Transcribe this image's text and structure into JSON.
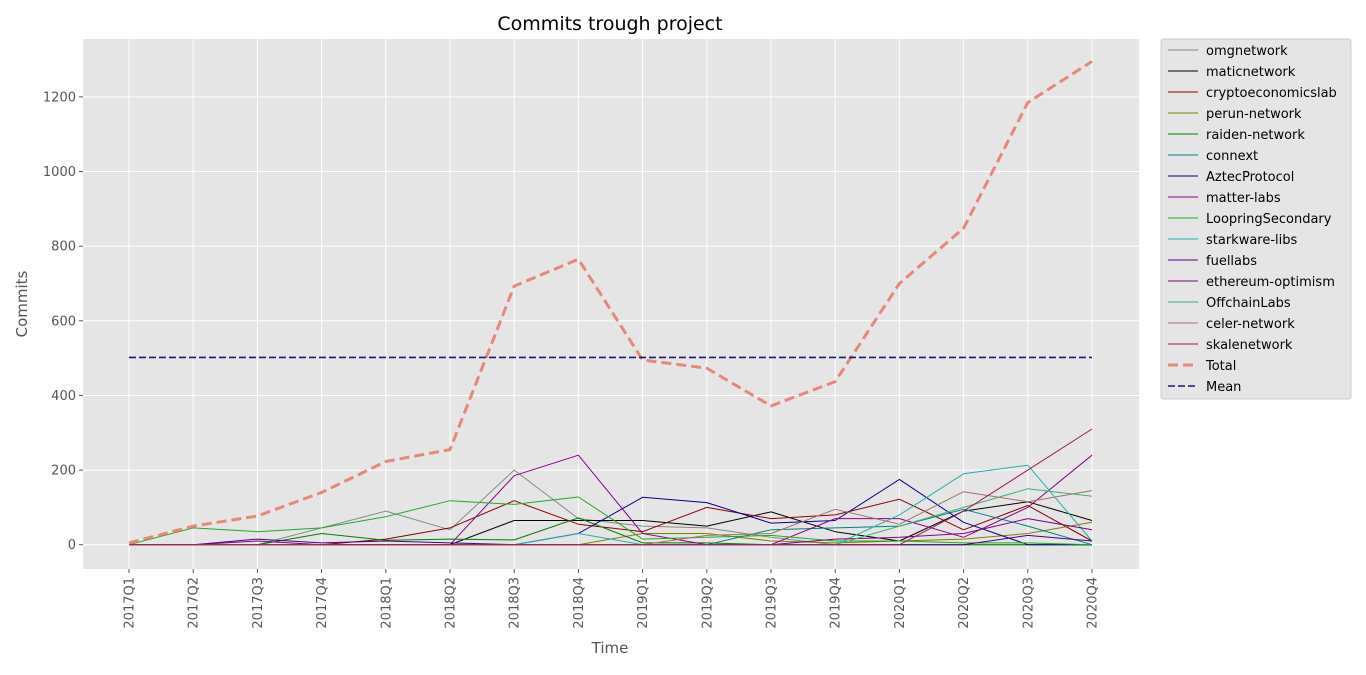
{
  "chart_data": {
    "type": "line",
    "title": "Commits trough project",
    "xlabel": "Time",
    "ylabel": "Commits",
    "ylim": [
      -65,
      1355
    ],
    "yticks": [
      0,
      200,
      400,
      600,
      800,
      1000,
      1200
    ],
    "grid": true,
    "legend_position": "outside-right",
    "categories": [
      "2017Q1",
      "2017Q2",
      "2017Q3",
      "2017Q4",
      "2018Q1",
      "2018Q2",
      "2018Q3",
      "2018Q4",
      "2019Q1",
      "2019Q2",
      "2019Q3",
      "2019Q4",
      "2020Q1",
      "2020Q2",
      "2020Q3",
      "2020Q4"
    ],
    "series": [
      {
        "name": "omgnetwork",
        "color": "#888888",
        "width": 1,
        "dash": "",
        "values": [
          0,
          0,
          0,
          45,
          90,
          40,
          200,
          70,
          50,
          45,
          20,
          0,
          0,
          0,
          0,
          0
        ]
      },
      {
        "name": "maticnetwork",
        "color": "#000000",
        "width": 1,
        "dash": "",
        "values": [
          0,
          0,
          0,
          0,
          0,
          0,
          65,
          65,
          65,
          50,
          88,
          35,
          10,
          90,
          115,
          65
        ]
      },
      {
        "name": "cryptoeconomicslab",
        "color": "#8b0000",
        "width": 1,
        "dash": "",
        "values": [
          0,
          0,
          0,
          0,
          15,
          45,
          118,
          55,
          35,
          100,
          70,
          80,
          122,
          40,
          105,
          10
        ]
      },
      {
        "name": "perun-network",
        "color": "#808000",
        "width": 1,
        "dash": "",
        "values": [
          0,
          0,
          0,
          0,
          0,
          0,
          0,
          0,
          30,
          30,
          10,
          5,
          10,
          15,
          30,
          60
        ]
      },
      {
        "name": "raiden-network",
        "color": "#008000",
        "width": 1,
        "dash": "",
        "values": [
          0,
          0,
          0,
          30,
          12,
          15,
          13,
          72,
          5,
          5,
          0,
          0,
          0,
          0,
          0,
          0
        ]
      },
      {
        "name": "connext",
        "color": "#008080",
        "width": 1,
        "dash": "",
        "values": [
          0,
          0,
          0,
          0,
          0,
          0,
          0,
          0,
          0,
          0,
          40,
          45,
          50,
          95,
          50,
          0
        ]
      },
      {
        "name": "AztecProtocol",
        "color": "#00008b",
        "width": 1,
        "dash": "",
        "values": [
          0,
          0,
          0,
          0,
          0,
          0,
          0,
          30,
          127,
          113,
          58,
          65,
          175,
          60,
          0,
          0
        ]
      },
      {
        "name": "matter-labs",
        "color": "#8b008b",
        "width": 1,
        "dash": "",
        "values": [
          0,
          0,
          0,
          0,
          0,
          0,
          185,
          240,
          30,
          0,
          0,
          70,
          70,
          20,
          100,
          240
        ]
      },
      {
        "name": "LoopringSecondary",
        "color": "#22aa22",
        "width": 1,
        "dash": "",
        "values": [
          0,
          45,
          35,
          45,
          75,
          118,
          108,
          128,
          15,
          20,
          25,
          10,
          10,
          5,
          5,
          0
        ]
      },
      {
        "name": "starkware-libs",
        "color": "#20b2aa",
        "width": 1,
        "dash": "",
        "values": [
          0,
          0,
          0,
          0,
          0,
          0,
          0,
          30,
          0,
          0,
          0,
          0,
          80,
          190,
          213,
          10
        ]
      },
      {
        "name": "fuellabs",
        "color": "#4b0082",
        "width": 1,
        "dash": "",
        "values": [
          0,
          0,
          15,
          5,
          10,
          5,
          0,
          0,
          0,
          0,
          0,
          0,
          0,
          0,
          25,
          10
        ]
      },
      {
        "name": "ethereum-optimism",
        "color": "#800080",
        "width": 1,
        "dash": "",
        "values": [
          0,
          0,
          10,
          0,
          0,
          0,
          0,
          0,
          0,
          0,
          0,
          15,
          20,
          30,
          70,
          40
        ]
      },
      {
        "name": "OffchainLabs",
        "color": "#3cb371",
        "width": 1,
        "dash": "",
        "values": [
          0,
          0,
          0,
          0,
          0,
          0,
          0,
          0,
          0,
          0,
          0,
          0,
          50,
          100,
          150,
          130
        ]
      },
      {
        "name": "celer-network",
        "color": "#a0726d",
        "width": 1,
        "dash": "",
        "values": [
          0,
          0,
          0,
          0,
          0,
          0,
          0,
          0,
          0,
          25,
          30,
          95,
          55,
          142,
          115,
          145
        ]
      },
      {
        "name": "skalenetwork",
        "color": "#a0195b",
        "width": 1,
        "dash": "",
        "values": [
          0,
          0,
          0,
          0,
          0,
          0,
          0,
          0,
          0,
          0,
          0,
          0,
          0,
          90,
          200,
          310
        ]
      },
      {
        "name": "Total",
        "color": "#e8887a",
        "width": 3,
        "dash": "10 5",
        "values": [
          5,
          50,
          77,
          140,
          223,
          255,
          693,
          765,
          495,
          473,
          372,
          437,
          700,
          848,
          1185,
          1295
        ]
      },
      {
        "name": "Mean",
        "color": "#1b1b78",
        "width": 1.6,
        "dash": "7 3",
        "values": [
          502,
          502,
          502,
          502,
          502,
          502,
          502,
          502,
          502,
          502,
          502,
          502,
          502,
          502,
          502,
          502
        ]
      }
    ]
  }
}
